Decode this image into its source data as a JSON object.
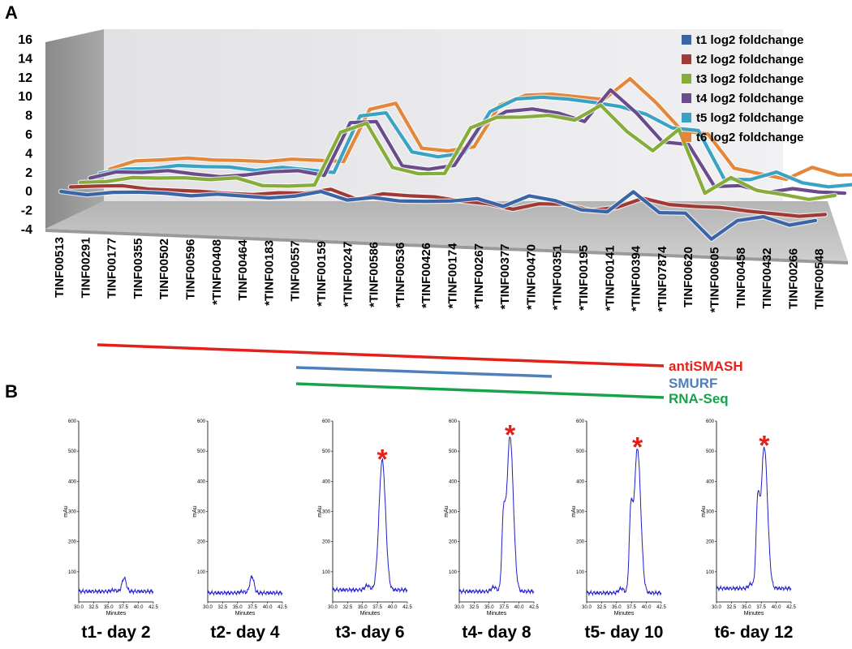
{
  "panel_a_label": "A",
  "panel_b_label": "B",
  "colors": {
    "t1": "#3a66a8",
    "t2": "#a13a36",
    "t3": "#86ac3a",
    "t4": "#6a4b8c",
    "t5": "#3aa3c3",
    "t6": "#e4873a",
    "antismash": "#e32119",
    "smurf": "#4f7fba",
    "rnaseq": "#17a34a",
    "trace": "#1f1fcc",
    "star": "#e32119"
  },
  "chart_data": [
    {
      "type": "line",
      "panel": "A",
      "categories": [
        "TINF00513",
        "TINF00291",
        "TINF00177",
        "TINF00355",
        "TINF00502",
        "TINF00596",
        "*TINF00408",
        "TINF00464",
        "*TINF00183",
        "TINF00557",
        "*TINF00159",
        "*TINF00247",
        "*TINF00586",
        "*TINF00536",
        "*TINF00426",
        "*TINF00174",
        "*TINF00267",
        "*TINF00377",
        "*TINF00470",
        "*TINF00351",
        "*TINF00195",
        "*TINF00141",
        "*TINF00394",
        "*TINF07874",
        "TINF00620",
        "*TINF00605",
        "TINF00458",
        "TINF00432",
        "TINF00266",
        "TINF00548"
      ],
      "yticks": [
        "16",
        "14",
        "12",
        "10",
        "8",
        "6",
        "4",
        "2",
        "0",
        "-2",
        "-4"
      ],
      "ylim": [
        -4,
        16
      ],
      "legend_position": "top-right",
      "series": [
        {
          "name": "t1 log2 foldchange",
          "values": [
            0.0,
            -0.4,
            0.0,
            0.1,
            0.0,
            -0.3,
            0.0,
            -0.2,
            -0.4,
            -0.1,
            0.6,
            -0.5,
            -0.1,
            -0.5,
            -0.5,
            -0.4,
            0.0,
            -1.0,
            0.5,
            -0.1,
            -1.3,
            -1.5,
            1.3,
            -1.5,
            -1.5,
            -5.0,
            -2.4,
            -1.8,
            -2.9,
            -2.2
          ]
        },
        {
          "name": "t2 log2 foldchange",
          "values": [
            0.0,
            0.2,
            0.3,
            -0.1,
            -0.2,
            -0.3,
            -0.5,
            -0.6,
            -0.3,
            -0.3,
            0.3,
            -1.0,
            -0.2,
            -0.4,
            -0.5,
            -1.0,
            -1.3,
            -2.0,
            -1.2,
            -1.2,
            -2.0,
            -1.5,
            -0.2,
            -1.0,
            -1.2,
            -1.3,
            -1.7,
            -2.0,
            -2.3,
            -2.0
          ]
        },
        {
          "name": "t3 log2 foldchange",
          "values": [
            0.0,
            0.2,
            0.8,
            0.8,
            0.9,
            0.7,
            1.0,
            0.0,
            0.0,
            0.2,
            7.5,
            8.8,
            2.8,
            2.0,
            2.1,
            8.4,
            9.9,
            10.0,
            10.3,
            9.7,
            11.8,
            8.3,
            5.7,
            8.7,
            0.0,
            2.2,
            0.5,
            0.0,
            -0.6,
            0.0
          ]
        },
        {
          "name": "t4 log2 foldchange",
          "values": [
            0.0,
            0.9,
            0.9,
            1.2,
            0.8,
            0.5,
            0.8,
            1.3,
            1.5,
            0.9,
            8.2,
            8.4,
            2.4,
            2.0,
            2.6,
            8.1,
            10.1,
            10.5,
            10.0,
            8.9,
            13.3,
            10.2,
            6.3,
            6.0,
            0.3,
            0.5,
            -0.4,
            0.2,
            -0.2,
            -0.3
          ]
        },
        {
          "name": "t5 log2 foldchange",
          "values": [
            0.0,
            0.7,
            0.8,
            1.3,
            1.2,
            1.2,
            0.8,
            1.3,
            1.0,
            0.7,
            8.5,
            9.0,
            3.7,
            3.1,
            3.7,
            9.4,
            11.2,
            11.5,
            11.3,
            10.9,
            10.4,
            9.4,
            7.6,
            7.3,
            0.7,
            0.7,
            1.8,
            0.4,
            -0.1,
            0.3
          ]
        },
        {
          "name": "t6 log2 foldchange",
          "values": [
            0.0,
            1.2,
            1.4,
            1.7,
            1.5,
            1.5,
            1.4,
            1.8,
            1.7,
            1.6,
            8.8,
            9.7,
            3.6,
            3.3,
            3.9,
            9.7,
            11.1,
            11.3,
            11.0,
            10.7,
            13.6,
            10.4,
            6.6,
            6.2,
            1.6,
            0.9,
            0.2,
            1.9,
            0.9,
            1.0
          ]
        }
      ],
      "annotations": [
        {
          "label": "antiSMASH",
          "range": [
            2,
            24
          ],
          "color_key": "antismash"
        },
        {
          "label": "SMURF",
          "range": [
            10,
            19
          ],
          "color_key": "smurf"
        },
        {
          "label": "RNA-Seq",
          "range": [
            10,
            24
          ],
          "color_key": "rnaseq"
        }
      ]
    },
    {
      "type": "line",
      "panel": "B",
      "x_label": "Minutes",
      "y_label": "mAu",
      "xticks": [
        "30.0",
        "32.5",
        "35.0",
        "37.5",
        "40.0",
        "42.5"
      ],
      "yticks": [
        "600",
        "500",
        "400",
        "300",
        "200",
        "100"
      ],
      "xlim": [
        30.0,
        42.5
      ],
      "ylim": [
        0,
        600
      ],
      "marker": "*",
      "chromatograms": [
        {
          "title": "t1- day 2",
          "peak_rt": 37.6,
          "peak_height": 80,
          "shoulder_height": 0,
          "baseline": 35,
          "has_marker": false
        },
        {
          "title": "t2- day 4",
          "peak_rt": 37.4,
          "peak_height": 85,
          "shoulder_height": 0,
          "baseline": 30,
          "has_marker": false
        },
        {
          "title": "t3- day 6",
          "peak_rt": 38.3,
          "peak_height": 470,
          "shoulder_height": 0,
          "baseline": 40,
          "has_marker": true
        },
        {
          "title": "t4- day 8",
          "peak_rt": 38.5,
          "peak_height": 550,
          "shoulder_height": 250,
          "baseline": 35,
          "has_marker": true
        },
        {
          "title": "t5- day 10",
          "peak_rt": 38.5,
          "peak_height": 510,
          "shoulder_height": 270,
          "baseline": 30,
          "has_marker": true
        },
        {
          "title": "t6- day 12",
          "peak_rt": 38.0,
          "peak_height": 515,
          "shoulder_height": 300,
          "baseline": 45,
          "has_marker": true
        }
      ]
    }
  ]
}
